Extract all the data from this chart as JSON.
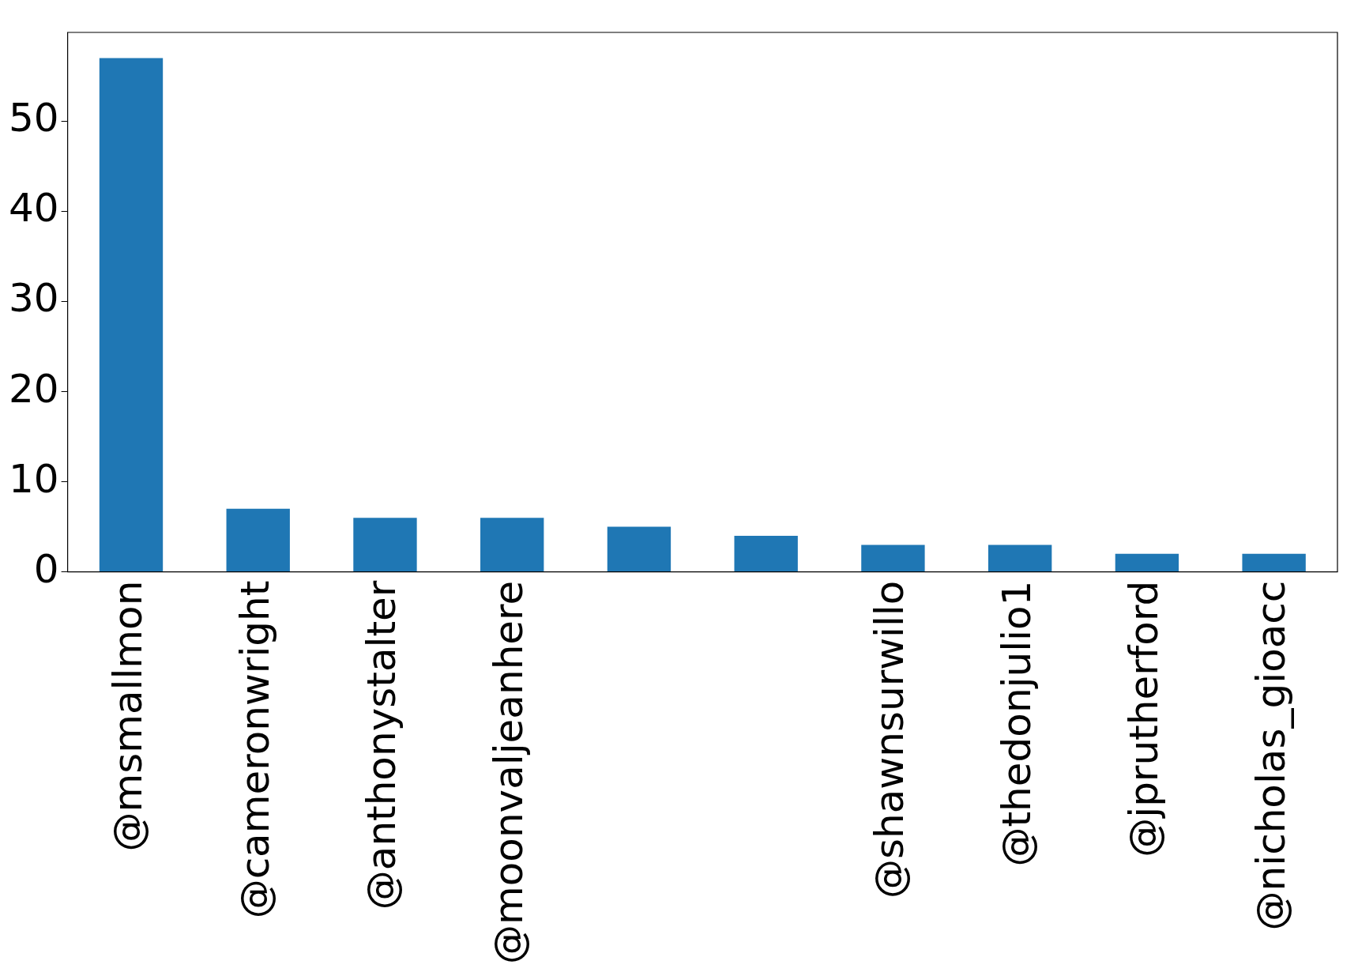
{
  "chart_data": {
    "type": "bar",
    "categories": [
      "@msmallmon",
      "@cameronwright",
      "@anthonystalter",
      "@moonvaljeanhere",
      null,
      null,
      "@shawnsurwillo",
      "@thedonjulio1",
      "@jprutherford",
      "@nicholas_gioacc"
    ],
    "values": [
      57,
      7,
      6,
      6,
      5,
      4,
      3,
      3,
      2,
      2
    ],
    "color": "#1f77b4",
    "ylim": [
      0,
      59.85
    ],
    "yticks": [
      0,
      10,
      20,
      30,
      40,
      50
    ],
    "grid": false,
    "legend": false
  }
}
